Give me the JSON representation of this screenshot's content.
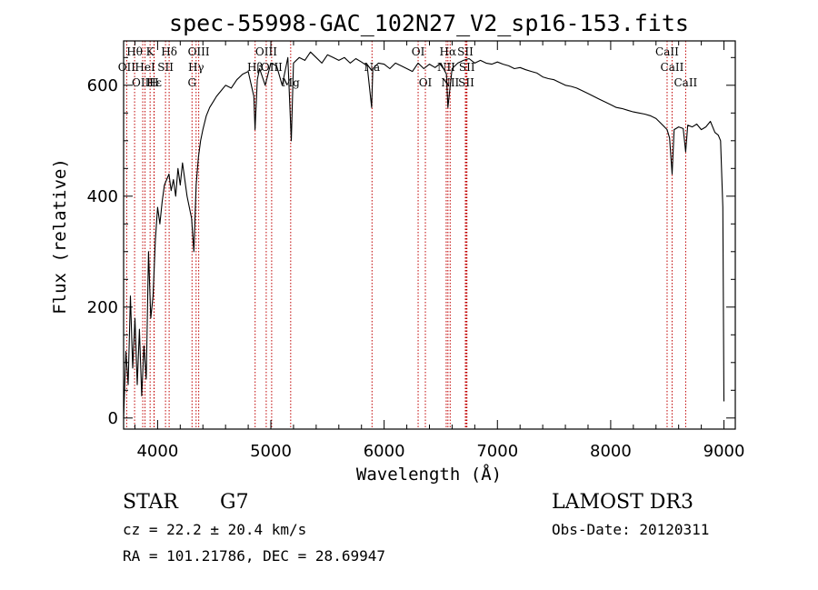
{
  "chart_data": {
    "type": "line",
    "title": "spec-55998-GAC_102N27_V2_sp16-153.fits",
    "xlabel": "Wavelength (Å)",
    "ylabel": "Flux (relative)",
    "xlim": [
      3700,
      9100
    ],
    "ylim": [
      -20,
      680
    ],
    "x_ticks": [
      4000,
      5000,
      6000,
      7000,
      8000,
      9000
    ],
    "x_tick_labels": [
      "4000",
      "5000",
      "6000",
      "7000",
      "8000",
      "9000"
    ],
    "y_ticks": [
      0,
      200,
      400,
      600
    ],
    "y_tick_labels": [
      "0",
      "200",
      "400",
      "600"
    ],
    "grid": false,
    "series": [
      {
        "name": "flux",
        "x": [
          3700,
          3720,
          3740,
          3760,
          3780,
          3800,
          3820,
          3840,
          3860,
          3880,
          3900,
          3920,
          3940,
          3960,
          3980,
          4000,
          4020,
          4040,
          4060,
          4080,
          4100,
          4120,
          4140,
          4160,
          4180,
          4200,
          4220,
          4240,
          4260,
          4280,
          4300,
          4320,
          4340,
          4360,
          4380,
          4400,
          4430,
          4460,
          4490,
          4520,
          4560,
          4600,
          4650,
          4700,
          4750,
          4800,
          4850,
          4860,
          4880,
          4900,
          4950,
          5000,
          5050,
          5100,
          5150,
          5180,
          5200,
          5250,
          5300,
          5350,
          5400,
          5450,
          5500,
          5550,
          5600,
          5650,
          5700,
          5750,
          5800,
          5850,
          5890,
          5900,
          5950,
          6000,
          6050,
          6100,
          6150,
          6200,
          6250,
          6300,
          6350,
          6400,
          6450,
          6500,
          6550,
          6563,
          6600,
          6650,
          6700,
          6750,
          6800,
          6850,
          6900,
          6950,
          7000,
          7050,
          7100,
          7150,
          7200,
          7250,
          7300,
          7350,
          7400,
          7450,
          7500,
          7550,
          7600,
          7650,
          7700,
          7750,
          7800,
          7850,
          7900,
          7950,
          8000,
          8050,
          8100,
          8150,
          8200,
          8250,
          8300,
          8350,
          8400,
          8450,
          8498,
          8520,
          8542,
          8560,
          8600,
          8640,
          8662,
          8680,
          8720,
          8760,
          8800,
          8840,
          8880,
          8920,
          8950,
          8970,
          8990,
          9000
        ],
        "values": [
          0,
          120,
          60,
          220,
          90,
          180,
          60,
          160,
          40,
          130,
          70,
          300,
          180,
          220,
          320,
          380,
          350,
          390,
          420,
          430,
          440,
          410,
          430,
          400,
          450,
          420,
          460,
          430,
          400,
          380,
          360,
          300,
          420,
          470,
          500,
          520,
          545,
          560,
          570,
          580,
          590,
          600,
          595,
          610,
          620,
          625,
          580,
          520,
          610,
          630,
          600,
          640,
          635,
          600,
          650,
          500,
          640,
          650,
          645,
          660,
          650,
          640,
          655,
          650,
          645,
          650,
          640,
          648,
          642,
          635,
          560,
          630,
          640,
          638,
          630,
          640,
          635,
          630,
          625,
          640,
          630,
          638,
          632,
          640,
          620,
          560,
          630,
          640,
          645,
          648,
          640,
          645,
          640,
          638,
          642,
          638,
          635,
          630,
          632,
          628,
          625,
          622,
          615,
          612,
          610,
          605,
          600,
          598,
          595,
          590,
          585,
          580,
          575,
          570,
          565,
          560,
          558,
          555,
          552,
          550,
          548,
          545,
          540,
          530,
          520,
          505,
          440,
          520,
          525,
          522,
          480,
          528,
          525,
          530,
          520,
          525,
          535,
          515,
          510,
          500,
          380,
          30
        ]
      }
    ],
    "spectral_lines": [
      {
        "name": "Hθ",
        "x": 3797,
        "row": 0
      },
      {
        "name": "OII",
        "x": 3727,
        "row": 1
      },
      {
        "name": "OIII",
        "x": 3869,
        "row": 2
      },
      {
        "name": "K",
        "x": 3934,
        "row": 0
      },
      {
        "name": "HeI",
        "x": 3889,
        "row": 1
      },
      {
        "name": "Hε",
        "x": 3970,
        "row": 2
      },
      {
        "name": "H",
        "x": 3968,
        "row": 2
      },
      {
        "name": "Hδ",
        "x": 4102,
        "row": 0
      },
      {
        "name": "SII",
        "x": 4070,
        "row": 1
      },
      {
        "name": "OIII",
        "x": 4363,
        "row": 0
      },
      {
        "name": "Hγ",
        "x": 4340,
        "row": 1
      },
      {
        "name": "G",
        "x": 4304,
        "row": 2
      },
      {
        "name": "OIII",
        "x": 4959,
        "row": 0
      },
      {
        "name": "OIII",
        "x": 5007,
        "row": 1
      },
      {
        "name": "Hβ",
        "x": 4861,
        "row": 1
      },
      {
        "name": "Mg",
        "x": 5175,
        "row": 2
      },
      {
        "name": "Na",
        "x": 5893,
        "row": 1
      },
      {
        "name": "OI",
        "x": 6300,
        "row": 0
      },
      {
        "name": "OI",
        "x": 6364,
        "row": 2
      },
      {
        "name": "Hα",
        "x": 6563,
        "row": 0
      },
      {
        "name": "SII",
        "x": 6717,
        "row": 0
      },
      {
        "name": "NII",
        "x": 6548,
        "row": 1
      },
      {
        "name": "NII",
        "x": 6583,
        "row": 2
      },
      {
        "name": "SII",
        "x": 6731,
        "row": 1
      },
      {
        "name": "SII",
        "x": 6725,
        "row": 2
      },
      {
        "name": "CaII",
        "x": 8498,
        "row": 0
      },
      {
        "name": "CaII",
        "x": 8542,
        "row": 1
      },
      {
        "name": "CaII",
        "x": 8662,
        "row": 2
      }
    ]
  },
  "footer": {
    "object_class": "STAR",
    "subclass": "G7",
    "survey": "LAMOST DR3",
    "redshift": "cz = 22.2 ± 20.4 km/s",
    "obs_date": "Obs-Date: 20120311",
    "coords": "RA = 101.21786, DEC =  28.69947"
  },
  "colors": {
    "line": "#000000",
    "marker": "#c00000",
    "background": "#ffffff"
  }
}
